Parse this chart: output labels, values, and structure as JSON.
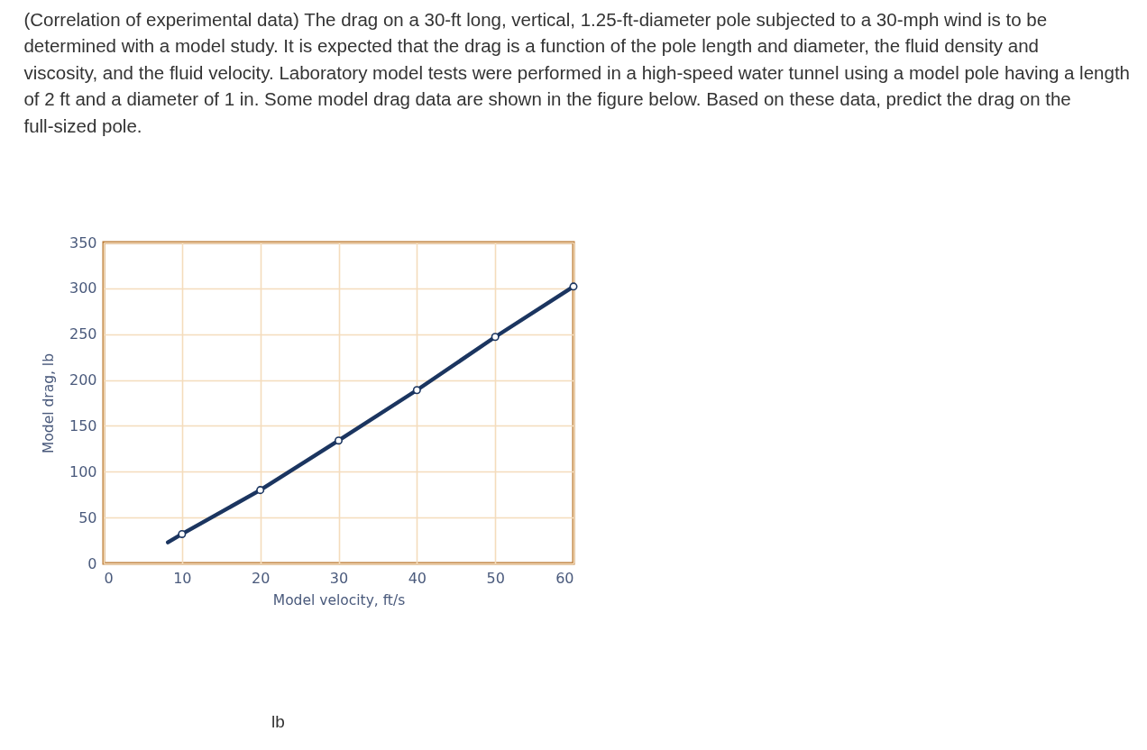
{
  "chart_data": {
    "type": "line",
    "title": "(Correlation of experimental data) The drag on a 30-ft long, vertical, 1.25-ft-diameter pole subjected to a 30-mph wind is to be determined with a model study. It is expected that the drag is a function of the pole length and diameter, the fluid density and viscosity, and the fluid velocity. Laboratory model tests were performed in a high-speed water tunnel using a model pole having a length of 2 ft and a diameter of 1 in. Some model drag data are shown in the figure below. Based on these data, predict the drag on the full-sized pole.",
    "xlabel": "Model velocity, ft/s",
    "ylabel": "Model drag, lb",
    "annotations": [
      "lb"
    ],
    "series": [
      {
        "color": "#1b3560",
        "x": [
          8.2,
          10,
          20,
          30,
          40,
          50,
          60
        ],
        "values": [
          23,
          32,
          80,
          134,
          189,
          247,
          302
        ],
        "marker": "none",
        "line_style": "solid"
      },
      {
        "type": "scatter",
        "color": "#1b3560",
        "x": [
          10,
          20,
          30,
          40,
          50,
          60
        ],
        "values": [
          32,
          80,
          134,
          189,
          247,
          302
        ],
        "marker": "circle"
      }
    ],
    "xlim": [
      0,
      60
    ],
    "xticks": [
      0,
      10,
      20,
      30,
      40,
      50,
      60
    ],
    "ylim": [
      0,
      350
    ],
    "yticks": [
      0,
      50,
      100,
      150,
      200,
      250,
      300,
      350
    ],
    "grid": true
  }
}
